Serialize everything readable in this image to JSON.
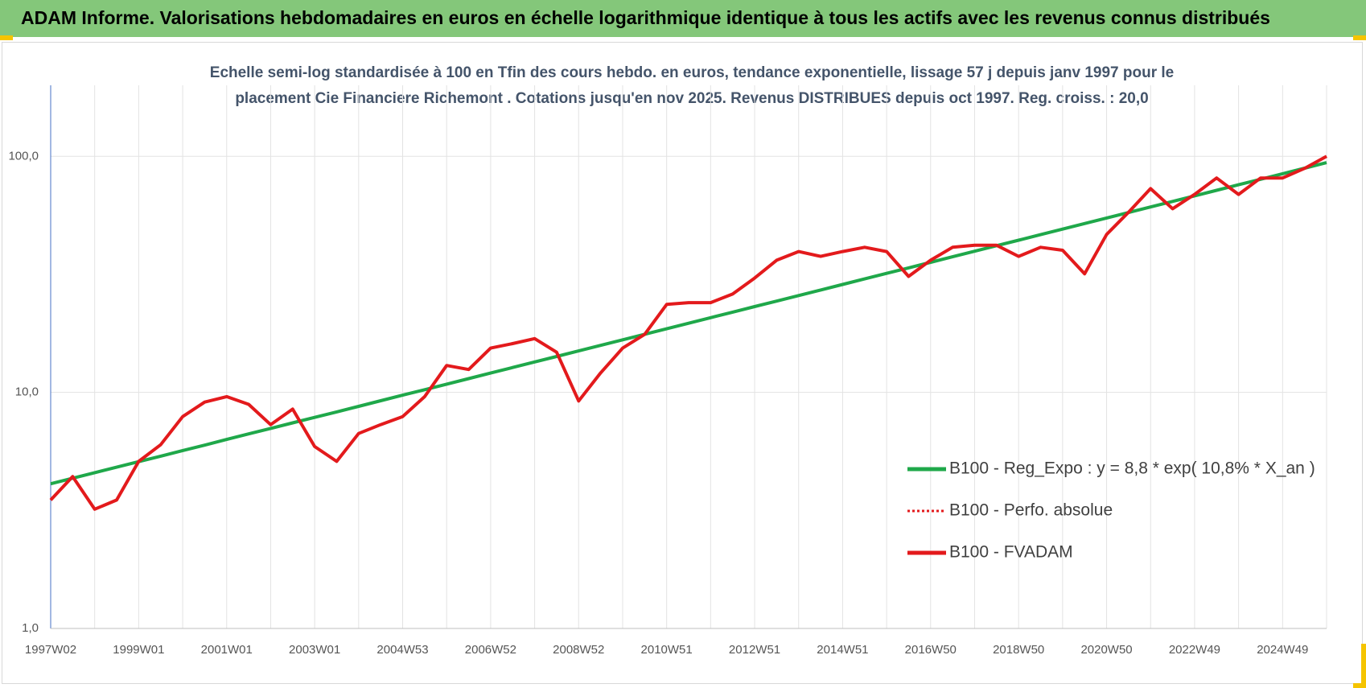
{
  "chart_data": {
    "type": "line",
    "title": "ADAM Informe. Valorisations hebdomadaires en euros en échelle logarithmique identique à tous les actifs avec les revenus connus distribués",
    "subtitle": "Echelle semi-log standardisée à 100 en Tfin des cours hebdo. en euros, tendance exponentielle, lissage 57 j depuis janv 1997 pour le placement Cie Financiere Richemont . Cotations jusqu'en nov 2025. Revenus DISTRIBUES depuis oct 1997. Reg. croiss. : 20,0",
    "log_scale": true,
    "grid": true,
    "legend": "right",
    "categories": [
      "1997W02",
      null,
      null,
      null,
      "1999W01",
      null,
      null,
      null,
      "2001W01",
      null,
      null,
      null,
      "2003W01",
      null,
      null,
      null,
      "2004W53",
      null,
      null,
      null,
      "2006W52",
      null,
      null,
      null,
      "2008W52",
      null,
      null,
      null,
      "2010W51",
      null,
      null,
      null,
      "2012W51",
      null,
      null,
      null,
      "2014W51",
      null,
      null,
      null,
      "2016W50",
      null,
      null,
      null,
      "2018W50",
      null,
      null,
      null,
      "2020W50",
      null,
      null,
      null,
      "2022W49",
      null,
      null,
      null,
      "2024W49",
      null,
      null
    ],
    "ylim": [
      1,
      200
    ],
    "yticks": [
      {
        "value": 1,
        "label": "1,0"
      },
      {
        "value": 10,
        "label": "10,0"
      },
      {
        "value": 100,
        "label": "100,0"
      }
    ],
    "series": [
      {
        "name": "B100 - Reg_Expo : y = 8,8 * exp( 10,8% *  X_an )",
        "color": "#1fa84a",
        "dashed": false,
        "values": [
          4.1,
          4.33,
          4.57,
          4.82,
          5.09,
          5.37,
          5.67,
          5.98,
          6.32,
          6.67,
          7.04,
          7.43,
          7.84,
          8.27,
          8.73,
          9.22,
          9.73,
          10.27,
          10.84,
          11.44,
          12.08,
          12.75,
          13.46,
          14.2,
          14.99,
          15.82,
          16.7,
          17.63,
          18.6,
          19.64,
          20.73,
          21.88,
          23.09,
          24.37,
          25.73,
          27.15,
          28.66,
          30.25,
          31.93,
          33.7,
          35.57,
          37.55,
          39.63,
          41.83,
          44.15,
          46.6,
          49.19,
          51.92,
          54.8,
          57.84,
          61.05,
          64.44,
          68.02,
          71.79,
          75.78,
          79.98,
          84.42,
          89.1,
          94.05
        ]
      },
      {
        "name": "B100 - Perfo. absolue",
        "color": "#e31a1c",
        "dashed": true,
        "values": [
          3.5,
          4.4,
          3.2,
          3.5,
          5.1,
          6.0,
          7.9,
          9.1,
          9.6,
          8.9,
          7.3,
          8.5,
          5.9,
          5.1,
          6.7,
          7.3,
          7.9,
          9.6,
          13,
          12.5,
          15.4,
          16.1,
          16.9,
          14.8,
          9.2,
          12.1,
          15.4,
          17.6,
          23.6,
          24,
          24,
          26.1,
          30.5,
          36.3,
          39.5,
          37.7,
          39.5,
          41.2,
          39.5,
          31,
          36.3,
          41.2,
          42,
          42,
          37.7,
          41.2,
          40,
          31.8,
          46.7,
          58,
          73,
          60,
          69,
          81,
          69,
          81,
          81,
          89,
          100
        ]
      },
      {
        "name": "B100 - FVADAM",
        "color": "#e31a1c",
        "dashed": false,
        "values": [
          3.5,
          4.4,
          3.2,
          3.5,
          5.1,
          6.0,
          7.9,
          9.1,
          9.6,
          8.9,
          7.3,
          8.5,
          5.9,
          5.1,
          6.7,
          7.3,
          7.9,
          9.6,
          13,
          12.5,
          15.4,
          16.1,
          16.9,
          14.8,
          9.2,
          12.1,
          15.4,
          17.6,
          23.6,
          24,
          24,
          26.1,
          30.5,
          36.3,
          39.5,
          37.7,
          39.5,
          41.2,
          39.5,
          31,
          36.3,
          41.2,
          42,
          42,
          37.7,
          41.2,
          40,
          31.8,
          46.7,
          58,
          73,
          60,
          69,
          81,
          69,
          81,
          81,
          89,
          100
        ]
      }
    ]
  }
}
